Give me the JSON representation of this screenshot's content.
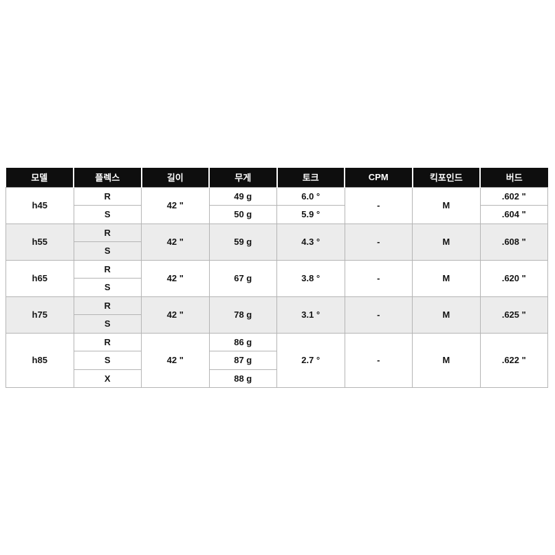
{
  "colors": {
    "header_bg": "#0e0e0e",
    "header_text": "#ffffff",
    "row_shaded_bg": "#ececec",
    "border": "#b4b4b4",
    "body_text": "#141414"
  },
  "table": {
    "headers": {
      "model": "모델",
      "flex": "플렉스",
      "length": "길이",
      "weight": "무게",
      "torque": "토크",
      "cpm": "CPM",
      "kickpoint": "킥포인드",
      "butt": "버드"
    },
    "groups": [
      {
        "model": "h45",
        "length": "42 \"",
        "cpm": "-",
        "kickpoint": "M",
        "rows": [
          {
            "flex": "R",
            "weight": "49 g",
            "torque": "6.0 °",
            "butt": ".602 \""
          },
          {
            "flex": "S",
            "weight": "50 g",
            "torque": "5.9 °",
            "butt": ".604 \""
          }
        ]
      },
      {
        "model": "h55",
        "length": "42 \"",
        "weight": "59 g",
        "torque": "4.3 °",
        "cpm": "-",
        "kickpoint": "M",
        "butt": ".608 \"",
        "rows": [
          {
            "flex": "R"
          },
          {
            "flex": "S"
          }
        ]
      },
      {
        "model": "h65",
        "length": "42 \"",
        "weight": "67 g",
        "torque": "3.8 °",
        "cpm": "-",
        "kickpoint": "M",
        "butt": ".620 \"",
        "rows": [
          {
            "flex": "R"
          },
          {
            "flex": "S"
          }
        ]
      },
      {
        "model": "h75",
        "length": "42 \"",
        "weight": "78 g",
        "torque": "3.1 °",
        "cpm": "-",
        "kickpoint": "M",
        "butt": ".625 \"",
        "rows": [
          {
            "flex": "R"
          },
          {
            "flex": "S"
          }
        ]
      },
      {
        "model": "h85",
        "length": "42 \"",
        "torque": "2.7 °",
        "cpm": "-",
        "kickpoint": "M",
        "butt": ".622 \"",
        "rows": [
          {
            "flex": "R",
            "weight": "86 g"
          },
          {
            "flex": "S",
            "weight": "87 g"
          },
          {
            "flex": "X",
            "weight": "88 g"
          }
        ]
      }
    ]
  }
}
